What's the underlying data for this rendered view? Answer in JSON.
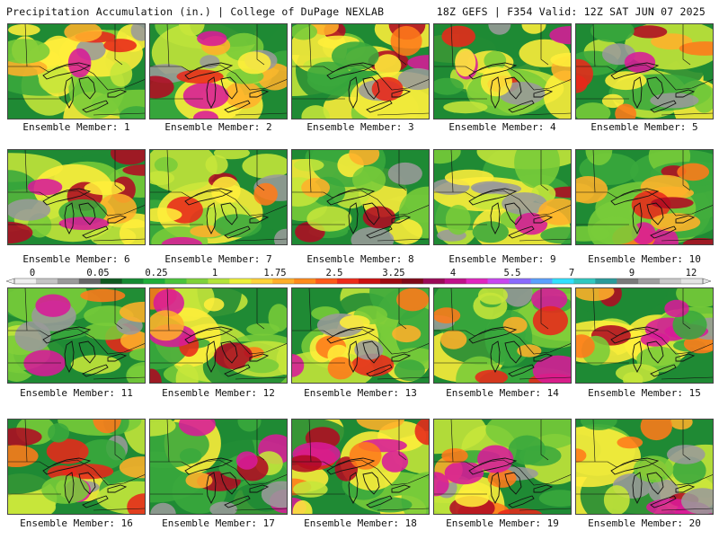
{
  "header": {
    "left_title": "Precipitation Accumulation (in.) | College of DuPage NEXLAB",
    "right_title": "18Z GEFS | F354 Valid: 12Z SAT JUN 07 2025"
  },
  "colorbar": {
    "labels": [
      "0",
      "0.05",
      "0.25",
      "1",
      "1.75",
      "2.5",
      "3.25",
      "4",
      "5.5",
      "7",
      "9",
      "12"
    ],
    "colors": [
      "#eeeeee",
      "#c4c4c4",
      "#9a9a9a",
      "#666666",
      "#0f5a20",
      "#148a32",
      "#1fae3a",
      "#4ac43c",
      "#7fd23a",
      "#b4e43a",
      "#eef03a",
      "#ffd23a",
      "#ffae2a",
      "#ff8a1a",
      "#ff5a1a",
      "#ee2a1a",
      "#cc1010",
      "#a00a10",
      "#800818",
      "#9a0a58",
      "#c0108a",
      "#e024c0",
      "#c846f0",
      "#8a6aff",
      "#5aa0ff",
      "#30e0ff",
      "#30c8c0",
      "#2a9a9a",
      "#7a7a7a",
      "#a0a0a0",
      "#cacaca",
      "#e4e4e4"
    ]
  },
  "panel_palette": [
    "#1f8a34",
    "#3aa83c",
    "#79cc39",
    "#c6e63a",
    "#ffee3a",
    "#ffb02a",
    "#ff7a1a",
    "#e8281a",
    "#b00a22",
    "#d81a98",
    "#9a9a9a"
  ],
  "members": [
    {
      "label": "Ensemble Member: 1"
    },
    {
      "label": "Ensemble Member: 2"
    },
    {
      "label": "Ensemble Member: 3"
    },
    {
      "label": "Ensemble Member: 4"
    },
    {
      "label": "Ensemble Member: 5"
    },
    {
      "label": "Ensemble Member: 6"
    },
    {
      "label": "Ensemble Member: 7"
    },
    {
      "label": "Ensemble Member: 8"
    },
    {
      "label": "Ensemble Member: 9"
    },
    {
      "label": "Ensemble Member: 10"
    },
    {
      "label": "Ensemble Member: 11"
    },
    {
      "label": "Ensemble Member: 12"
    },
    {
      "label": "Ensemble Member: 13"
    },
    {
      "label": "Ensemble Member: 14"
    },
    {
      "label": "Ensemble Member: 15"
    },
    {
      "label": "Ensemble Member: 16"
    },
    {
      "label": "Ensemble Member: 17"
    },
    {
      "label": "Ensemble Member: 18"
    },
    {
      "label": "Ensemble Member: 19"
    },
    {
      "label": "Ensemble Member: 20"
    }
  ]
}
